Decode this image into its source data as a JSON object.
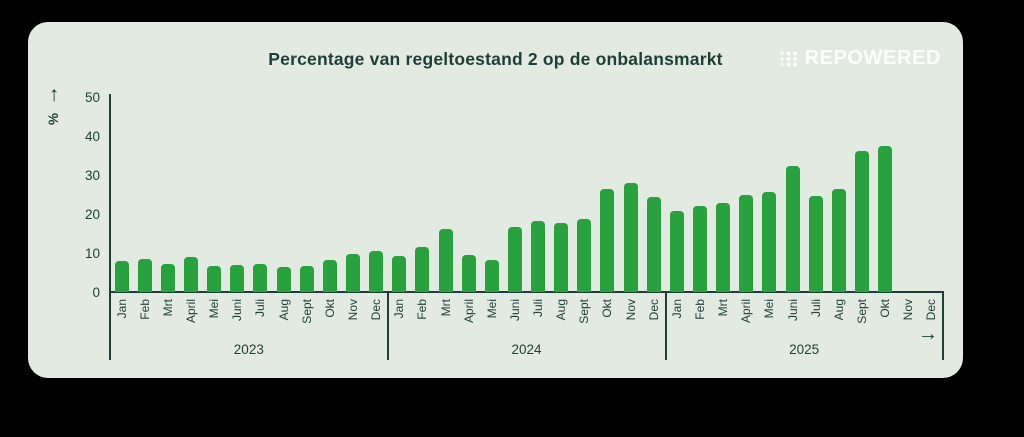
{
  "header": {
    "logo_text": "REPOWERED"
  },
  "icons": {
    "up_arrow": "↑",
    "right_arrow": "→"
  },
  "colors": {
    "card_background": "#e2eae1",
    "text_dark_teal": "#1e3e3a",
    "bar_green": "#28a23c",
    "logo_white": "#fcfefc"
  },
  "chart_data": {
    "type": "bar",
    "title": "Percentage van regeltoestand 2 op de onbalansmarkt",
    "xlabel": "",
    "ylabel": "%",
    "ylim": [
      0,
      50
    ],
    "y_ticks": [
      0,
      10,
      20,
      30,
      40,
      50
    ],
    "grid": false,
    "legend": false,
    "bar_color": "#28a23c",
    "categories": [
      "Jan",
      "Feb",
      "Mrt",
      "April",
      "Mei",
      "Juni",
      "Juli",
      "Aug",
      "Sept",
      "Okt",
      "Nov",
      "Dec"
    ],
    "series": [
      {
        "name": "2023",
        "values": [
          8.1,
          8.5,
          7.4,
          9.1,
          6.7,
          7.0,
          7.4,
          6.6,
          6.9,
          8.4,
          10.0,
          10.7
        ]
      },
      {
        "name": "2024",
        "values": [
          9.4,
          11.6,
          16.4,
          9.7,
          8.4,
          16.9,
          18.4,
          18.0,
          19.0,
          26.7,
          28.2,
          24.6
        ]
      },
      {
        "name": "2025",
        "values": [
          21.1,
          22.2,
          23.1,
          25.0,
          25.8,
          32.5,
          24.9,
          26.7,
          36.4,
          37.6,
          null,
          null
        ]
      }
    ]
  }
}
